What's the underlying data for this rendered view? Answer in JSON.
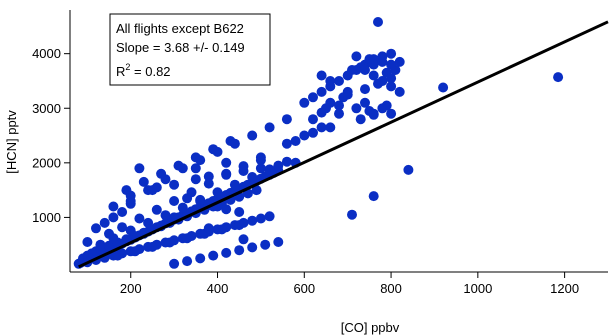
{
  "chart_data": {
    "type": "scatter",
    "title": "",
    "xlabel": "[CO] ppbv",
    "ylabel": "[HCN] pptv",
    "xlim": [
      60,
      1300
    ],
    "ylim": [
      0,
      4800
    ],
    "xticks": [
      200,
      400,
      600,
      800,
      1000,
      1200
    ],
    "yticks": [
      1000,
      2000,
      3000,
      4000
    ],
    "grid": false,
    "point_color": "#0a2ec4",
    "line_color": "#000000",
    "annotation": {
      "line1": "All flights except B622",
      "line2": "Slope = 3.68 +/- 0.149",
      "r2_prefix": "R",
      "r2_exp": "2",
      "r2_suffix": " = 0.82"
    },
    "fit_line": {
      "slope": 3.68,
      "x": [
        80,
        1310
      ],
      "y": [
        95,
        4620
      ]
    },
    "series": [
      {
        "x": [
          80,
          85,
          90,
          95,
          100,
          110,
          120,
          130,
          140,
          150,
          160,
          170,
          180,
          190,
          200,
          210,
          220,
          230,
          240,
          250,
          260,
          270,
          280,
          290,
          300,
          310,
          320,
          330,
          340,
          350,
          360,
          370,
          380,
          390,
          400,
          410,
          420,
          430,
          440,
          450,
          460,
          470,
          480,
          490,
          500,
          510,
          520,
          530,
          540,
          90,
          100,
          110,
          120,
          130,
          150,
          170,
          190,
          210,
          230,
          250,
          270,
          290,
          310,
          330,
          350,
          370,
          390,
          410,
          430,
          450,
          470,
          490,
          100,
          120,
          140,
          160,
          180,
          200,
          220,
          240,
          260,
          280,
          300,
          320,
          340,
          360,
          380,
          400,
          420,
          440,
          460,
          480,
          500,
          520,
          130,
          160,
          200,
          240,
          280,
          320,
          360,
          400,
          440,
          480,
          520,
          560,
          150,
          180,
          220,
          260,
          300,
          340,
          380,
          420,
          460,
          500,
          190,
          230,
          270,
          310,
          350,
          390,
          430,
          170,
          210,
          250,
          290,
          330,
          370,
          410,
          450,
          120,
          140,
          160,
          200,
          240,
          280,
          320,
          360,
          400,
          440,
          480,
          520,
          560,
          300,
          330,
          360,
          390,
          420,
          450,
          480,
          510,
          540,
          200,
          250,
          300,
          350,
          380,
          420,
          460,
          500,
          540,
          580,
          330,
          360,
          380,
          400,
          420,
          450,
          180,
          200,
          260,
          350,
          420,
          500,
          100,
          160,
          220,
          300,
          380,
          460,
          560,
          580,
          600,
          620,
          660,
          600,
          620,
          640,
          660,
          680,
          700,
          720,
          740,
          760,
          780,
          800,
          820,
          640,
          660,
          700,
          740,
          780,
          800,
          710,
          730,
          760,
          790,
          810,
          720,
          750,
          780,
          800,
          690,
          740,
          770,
          800,
          730,
          760,
          790,
          680,
          720,
          750,
          620,
          650,
          700,
          680,
          660,
          640,
          740,
          760,
          780,
          800,
          820,
          770,
          840,
          920,
          1185,
          760,
          710,
          640,
          760
        ],
        "y": [
          150,
          170,
          190,
          200,
          230,
          260,
          300,
          330,
          370,
          400,
          440,
          470,
          520,
          560,
          590,
          630,
          670,
          700,
          740,
          780,
          820,
          850,
          890,
          930,
          960,
          1000,
          1040,
          1070,
          1110,
          1150,
          1190,
          1220,
          1260,
          1300,
          1330,
          1370,
          1410,
          1450,
          1480,
          1520,
          1560,
          1600,
          1630,
          1670,
          1710,
          1750,
          1780,
          1820,
          1860,
          250,
          300,
          340,
          380,
          420,
          480,
          540,
          600,
          660,
          720,
          780,
          840,
          900,
          960,
          1020,
          1080,
          1140,
          1200,
          1260,
          1320,
          1380,
          1440,
          1500,
          180,
          220,
          260,
          300,
          340,
          380,
          420,
          460,
          500,
          540,
          580,
          620,
          660,
          700,
          740,
          780,
          820,
          860,
          900,
          940,
          980,
          1020,
          500,
          620,
          760,
          900,
          1040,
          1180,
          1320,
          1460,
          1600,
          1740,
          1880,
          2020,
          700,
          820,
          980,
          1140,
          1300,
          1460,
          1620,
          1780,
          1940,
          2100,
          1500,
          1650,
          1800,
          1950,
          2100,
          2250,
          2400,
          300,
          380,
          460,
          540,
          620,
          700,
          780,
          860,
          800,
          900,
          1000,
          1300,
          1500,
          1700,
          1900,
          2050,
          2200,
          2350,
          2500,
          2650,
          2800,
          150,
          200,
          250,
          300,
          350,
          400,
          450,
          500,
          550,
          1400,
          1500,
          1600,
          1700,
          1750,
          1800,
          1850,
          1900,
          1950,
          2000,
          1350,
          1300,
          1250,
          1200,
          1150,
          1100,
          1100,
          1250,
          1550,
          1900,
          2000,
          2050,
          550,
          1200,
          1900,
          1000,
          800,
          600,
          2350,
          2400,
          2500,
          2550,
          2650,
          3100,
          3200,
          3300,
          3400,
          3500,
          3600,
          3700,
          3800,
          3900,
          3950,
          4000,
          3850,
          3600,
          3500,
          3300,
          3100,
          3000,
          2900,
          3700,
          3750,
          3800,
          3650,
          3700,
          3950,
          3900,
          3850,
          3800,
          3200,
          3350,
          3450,
          3550,
          2800,
          2900,
          3050,
          3050,
          3000,
          2950,
          2800,
          3000,
          3250,
          2900,
          3100,
          2650,
          3700,
          3600,
          3500,
          3400,
          3300,
          4580,
          1870,
          3380,
          3570,
          1390,
          1050,
          2920,
          2880
        ]
      }
    ]
  }
}
